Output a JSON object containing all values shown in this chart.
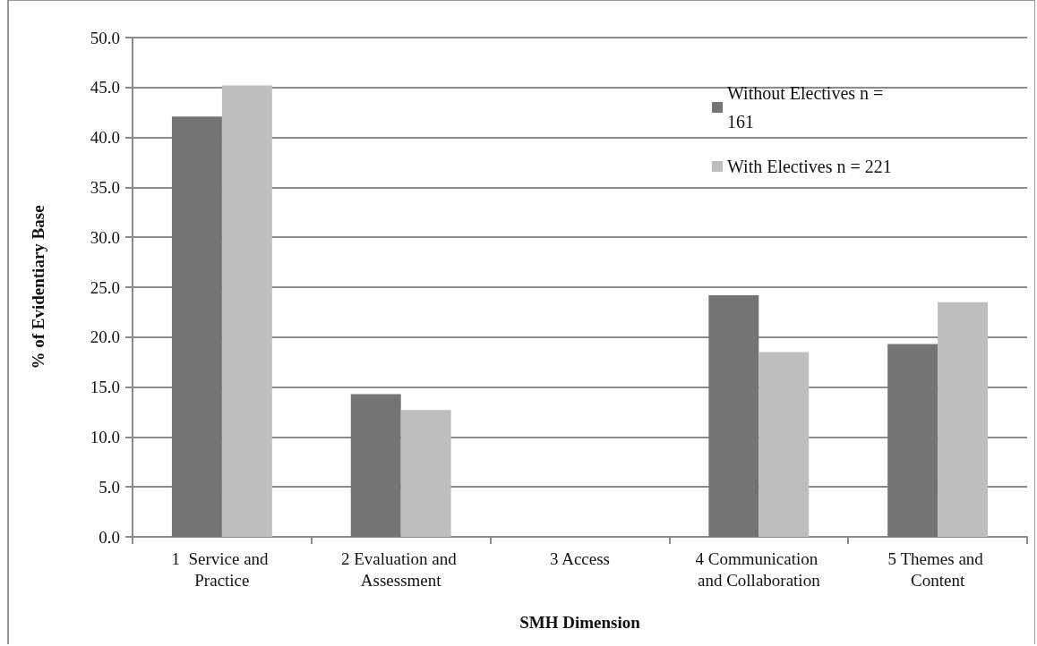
{
  "chart_data": {
    "type": "bar",
    "xlabel": "SMH Dimension",
    "ylabel": "% of Evidentiary Base",
    "categories": [
      "1  Service and Practice",
      "2 Evaluation and Assessment",
      "3 Access",
      "4 Communication and Collaboration",
      "5 Themes and Content"
    ],
    "series": [
      {
        "name": "Without Electives n = 161",
        "color": "#747474",
        "values": [
          42.1,
          14.3,
          0,
          24.2,
          19.3
        ]
      },
      {
        "name": "With Electives n = 221",
        "color": "#bebebe",
        "values": [
          45.2,
          12.7,
          0,
          18.5,
          23.5
        ]
      }
    ],
    "ylim": [
      0,
      50
    ],
    "yticks": [
      {
        "value": 0,
        "label": "0.0"
      },
      {
        "value": 5,
        "label": "5.0"
      },
      {
        "value": 10,
        "label": "10.0"
      },
      {
        "value": 15,
        "label": "15.0"
      },
      {
        "value": 20,
        "label": "20.0"
      },
      {
        "value": 25,
        "label": "25.0"
      },
      {
        "value": 30,
        "label": "30.0"
      },
      {
        "value": 35,
        "label": "35.0"
      },
      {
        "value": 40,
        "label": "40.0"
      },
      {
        "value": 45,
        "label": "45.0"
      },
      {
        "value": 50,
        "label": "50.0"
      }
    ],
    "grid": "y",
    "legend": "top right"
  }
}
